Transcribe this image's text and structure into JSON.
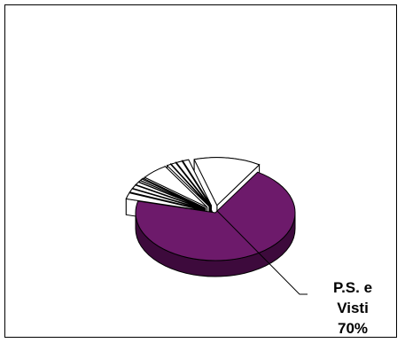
{
  "chart_data": {
    "type": "pie",
    "style": "3d-exploded",
    "slices": [
      {
        "label": "P.S. e Visti",
        "value": 70,
        "color": "#6d1a6b",
        "exploded": false
      },
      {
        "label": "",
        "value": 13.5,
        "color": "#ffffff",
        "exploded": true
      },
      {
        "label": "",
        "value": 1.2,
        "color": "#ffffff",
        "exploded": true
      },
      {
        "label": "",
        "value": 1.2,
        "color": "#ffffff",
        "exploded": true
      },
      {
        "label": "",
        "value": 1.0,
        "color": "#ffffff",
        "exploded": true
      },
      {
        "label": "",
        "value": 0.8,
        "color": "#ffffff",
        "exploded": true
      },
      {
        "label": "",
        "value": 5.5,
        "color": "#ffffff",
        "exploded": true
      },
      {
        "label": "",
        "value": 0.3,
        "color": "#ffffff",
        "exploded": true
      },
      {
        "label": "",
        "value": 0.5,
        "color": "#ffffff",
        "exploded": true
      },
      {
        "label": "",
        "value": 0.5,
        "color": "#ffffff",
        "exploded": true
      },
      {
        "label": "",
        "value": 1.0,
        "color": "#ffffff",
        "exploded": true
      },
      {
        "label": "",
        "value": 1.2,
        "color": "#ffffff",
        "exploded": true
      },
      {
        "label": "",
        "value": 1.2,
        "color": "#ffffff",
        "exploded": true
      },
      {
        "label": "",
        "value": 2.1,
        "color": "#ffffff",
        "exploded": true
      }
    ],
    "data_label": {
      "lines": [
        "P.S. e",
        "Visti",
        "70%"
      ]
    },
    "colors": {
      "main_slice_side": "#3d0a3c",
      "outline": "#000000",
      "frame": "#000000"
    }
  }
}
